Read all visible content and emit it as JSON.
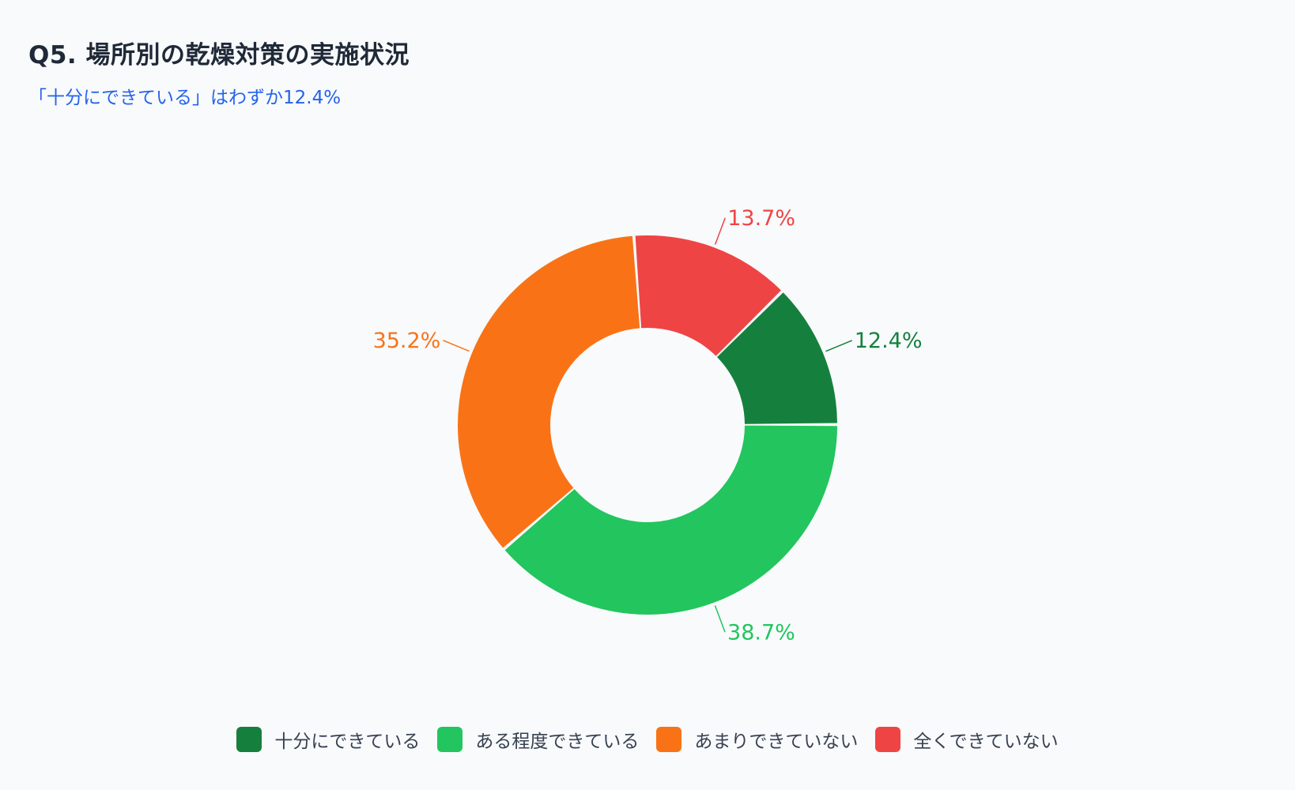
{
  "header": {
    "title": "Q5. 場所別の乾燥対策の実施状況",
    "subtitle": "「十分にできている」はわずか12.4%"
  },
  "chart_data": {
    "type": "pie",
    "donut": true,
    "legend_position": "bottom",
    "categories": [
      "十分にできている",
      "ある程度できている",
      "あまりできていない",
      "全くできていない"
    ],
    "values": [
      12.4,
      38.7,
      35.2,
      13.7
    ],
    "labels": [
      "12.4%",
      "38.7%",
      "35.2%",
      "13.7%"
    ],
    "colors": [
      "#15803d",
      "#22c55e",
      "#f97316",
      "#ef4444"
    ]
  }
}
